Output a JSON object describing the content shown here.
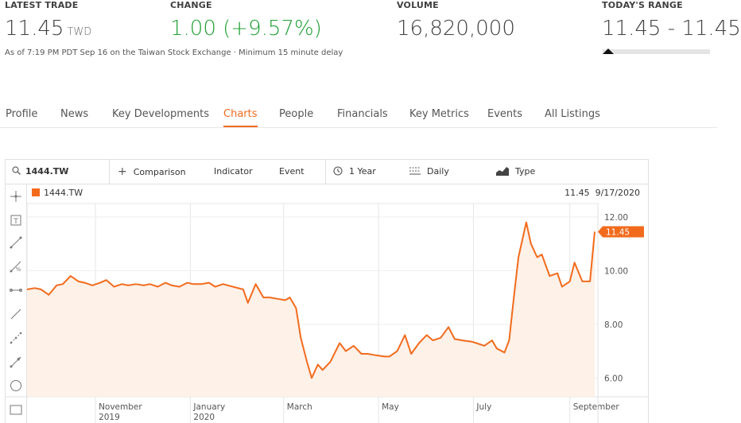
{
  "header": {
    "latest_trade": {
      "label": "LATEST TRADE",
      "value": "11.45",
      "unit": "TWD"
    },
    "change": {
      "label": "CHANGE",
      "value": "1.00 (+9.57%)"
    },
    "volume": {
      "label": "VOLUME",
      "value": "16,820,000"
    },
    "range": {
      "label": "TODAY'S RANGE",
      "value": "11.45 - 11.45",
      "position": 0
    },
    "note": "As of 7:19 PM PDT Sep 16 on the Taiwan Stock Exchange · Minimum 15 minute delay"
  },
  "tabs": [
    {
      "label": "Profile",
      "active": false
    },
    {
      "label": "News",
      "active": false
    },
    {
      "label": "Key Developments",
      "active": false
    },
    {
      "label": "Charts",
      "active": true
    },
    {
      "label": "People",
      "active": false
    },
    {
      "label": "Financials",
      "active": false
    },
    {
      "label": "Key Metrics",
      "active": false
    },
    {
      "label": "Events",
      "active": false
    },
    {
      "label": "All Listings",
      "active": false
    }
  ],
  "toolbar": {
    "symbol": "1444.TW",
    "comparison": "Comparison",
    "indicator": "Indicator",
    "event": "Event",
    "period": "1 Year",
    "interval": "Daily",
    "type": "Type"
  },
  "chart_header": {
    "series_label": "1444.TW",
    "last_value": "11.45",
    "last_date": "9/17/2020"
  },
  "tools": [
    "crosshair-icon",
    "text-tool-icon",
    "line-tool-icon",
    "measure-tool-icon",
    "horizontal-line-icon",
    "trend-line-icon",
    "point-line-icon",
    "arrow-line-icon",
    "circle-tool-icon",
    "rectangle-tool-icon"
  ],
  "colors": {
    "accent": "#f26b1d",
    "area_fill": "#fdf1e8",
    "positive": "#21a035"
  },
  "chart_data": {
    "type": "area",
    "series": [
      {
        "name": "1444.TW",
        "color": "#f26b1d"
      }
    ],
    "x": [
      "2019-09-18",
      "2019-09-23",
      "2019-09-27",
      "2019-10-02",
      "2019-10-07",
      "2019-10-11",
      "2019-10-16",
      "2019-10-21",
      "2019-10-25",
      "2019-10-30",
      "2019-11-04",
      "2019-11-08",
      "2019-11-13",
      "2019-11-18",
      "2019-11-22",
      "2019-11-27",
      "2019-12-02",
      "2019-12-06",
      "2019-12-11",
      "2019-12-16",
      "2019-12-20",
      "2019-12-25",
      "2019-12-30",
      "2020-01-03",
      "2020-01-08",
      "2020-01-13",
      "2020-01-17",
      "2020-01-22",
      "2020-02-04",
      "2020-02-07",
      "2020-02-12",
      "2020-02-17",
      "2020-02-21",
      "2020-02-26",
      "2020-03-02",
      "2020-03-05",
      "2020-03-09",
      "2020-03-12",
      "2020-03-16",
      "2020-03-19",
      "2020-03-23",
      "2020-03-26",
      "2020-03-31",
      "2020-04-06",
      "2020-04-10",
      "2020-04-15",
      "2020-04-20",
      "2020-04-24",
      "2020-04-29",
      "2020-05-05",
      "2020-05-08",
      "2020-05-13",
      "2020-05-18",
      "2020-05-22",
      "2020-05-27",
      "2020-06-01",
      "2020-06-05",
      "2020-06-10",
      "2020-06-15",
      "2020-06-19",
      "2020-06-24",
      "2020-06-30",
      "2020-07-03",
      "2020-07-08",
      "2020-07-13",
      "2020-07-16",
      "2020-07-21",
      "2020-07-24",
      "2020-07-27",
      "2020-07-30",
      "2020-08-04",
      "2020-08-07",
      "2020-08-11",
      "2020-08-14",
      "2020-08-19",
      "2020-08-24",
      "2020-08-27",
      "2020-09-01",
      "2020-09-04",
      "2020-09-09",
      "2020-09-14",
      "2020-09-17"
    ],
    "values": [
      9.3,
      9.35,
      9.3,
      9.1,
      9.45,
      9.5,
      9.8,
      9.6,
      9.55,
      9.45,
      9.55,
      9.65,
      9.4,
      9.5,
      9.45,
      9.5,
      9.45,
      9.5,
      9.4,
      9.55,
      9.45,
      9.4,
      9.55,
      9.5,
      9.5,
      9.55,
      9.4,
      9.5,
      9.3,
      8.8,
      9.5,
      9.0,
      9.0,
      8.95,
      8.9,
      9.0,
      8.6,
      7.5,
      6.6,
      6.0,
      6.5,
      6.3,
      6.6,
      7.3,
      7.0,
      7.2,
      6.9,
      6.9,
      6.85,
      6.8,
      6.8,
      7.0,
      7.6,
      6.9,
      7.3,
      7.6,
      7.4,
      7.5,
      7.9,
      7.45,
      7.4,
      7.35,
      7.3,
      7.2,
      7.4,
      7.1,
      6.95,
      7.4,
      9.0,
      10.5,
      11.8,
      11.0,
      10.5,
      10.6,
      9.8,
      9.9,
      9.4,
      9.6,
      10.3,
      9.6,
      9.6,
      11.45
    ],
    "ylim": [
      5.3,
      12.5
    ],
    "y_ticks": [
      "6.00",
      "8.00",
      "10.00",
      "12.00"
    ],
    "y_tick_values": [
      6,
      8,
      10,
      12
    ],
    "x_ticks": [
      {
        "date": "2019-11-01",
        "label": "November",
        "sub": "2019"
      },
      {
        "date": "2020-01-01",
        "label": "January",
        "sub": "2020"
      },
      {
        "date": "2020-03-01",
        "label": "March",
        "sub": ""
      },
      {
        "date": "2020-05-01",
        "label": "May",
        "sub": ""
      },
      {
        "date": "2020-07-01",
        "label": "July",
        "sub": ""
      },
      {
        "date": "2020-09-01",
        "label": "September",
        "sub": ""
      }
    ],
    "last_label": "11.45",
    "grid": true
  }
}
